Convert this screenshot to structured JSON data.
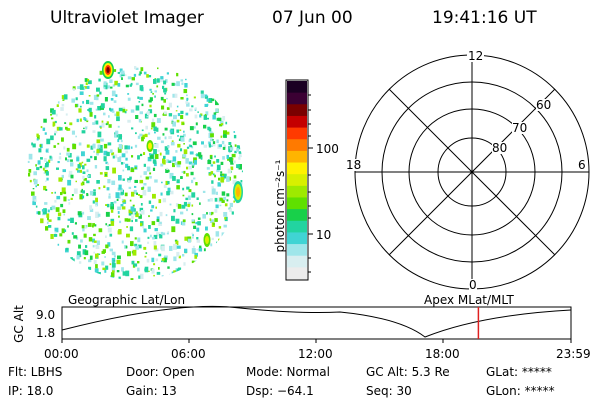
{
  "header": {
    "title": "Ultraviolet Imager",
    "date": "07 Jun 00",
    "time": "19:41:16 UT"
  },
  "colorbar": {
    "unit_label": "photon cm⁻²s⁻¹",
    "ticks": [
      "100",
      "10"
    ],
    "colors_top_to_bottom": [
      "#1a0022",
      "#3b0033",
      "#7a0000",
      "#c40000",
      "#ff3a00",
      "#ff7a00",
      "#ffb400",
      "#fff200",
      "#d8f000",
      "#9eea00",
      "#5fe000",
      "#18d04a",
      "#22d4a0",
      "#40d4d4",
      "#9fe6ea",
      "#d8eef0",
      "#ececec"
    ]
  },
  "polar_grid": {
    "mlt_labels": {
      "top": "12",
      "left": "18",
      "right": "6",
      "bottom": "0"
    },
    "lat_labels": [
      "60",
      "70",
      "80"
    ]
  },
  "timeline": {
    "left_title": "Geographic Lat/Lon",
    "right_title": "Apex MLat/MLT",
    "y_axis_label": "GC Alt",
    "y_ticks": [
      "9.0",
      "1.8"
    ],
    "x_ticks": [
      "00:00",
      "06:00",
      "12:00",
      "18:00",
      "23:59"
    ],
    "current_time_fraction": 0.818,
    "marker_color": "#e02020"
  },
  "info": {
    "filter": "Flt: LBHS",
    "ip": "IP: 18.0",
    "door": "Door: Open",
    "gain": "Gain: 13",
    "mode": "Mode: Normal",
    "dsp": "Dsp:  −64.1",
    "gc_alt": "GC Alt: 5.3 Re",
    "seq": "Seq: 30",
    "glat": "GLat: *****",
    "glon": "GLon: *****"
  }
}
